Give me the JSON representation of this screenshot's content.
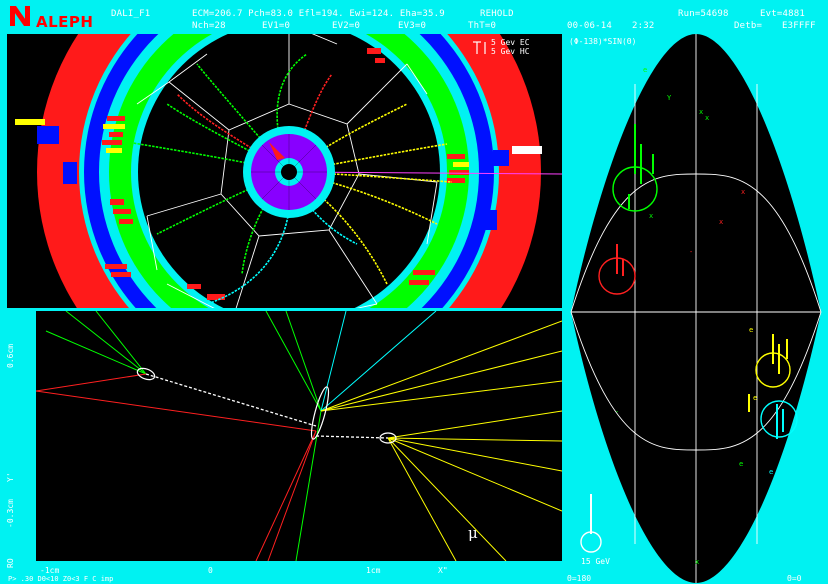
{
  "header": {
    "logo_text": "ALEPH",
    "program": "DALI_F1",
    "ecm_line": "ECM=206.7 Pch=83.0 Efl=194. Ewi=124. Eha=35.9",
    "rehold": "REHOLD",
    "run": "Run=54698",
    "evt": "Evt=4881",
    "nch_line": "Nch=28",
    "ev1": "EV1=0",
    "ev2": "EV2=0",
    "ev3": "EV3=0",
    "tht": "ThT=0",
    "date": "00-06-14",
    "time": "2:32",
    "detb": "Detb=",
    "detb_val": "E3FFFF"
  },
  "top_view": {
    "scale_ec": "5 Gev EC",
    "scale_hc": "5 Gev HC"
  },
  "zoom_view": {
    "y_top": "0.6cm",
    "y_bottom": "-0.3cm",
    "y_symbol": "Y'",
    "rho_label": "RO",
    "x_left": "-1cm",
    "x_mid": "0",
    "x_right": "1cm",
    "x_symbol": "X\"",
    "footer": "P> .30 D0<10 Z0<3 F C imp",
    "mu_label": "μ"
  },
  "right_view": {
    "title": "(Φ-138)*SIN(Θ)",
    "scale_label": "15 GeV",
    "bottom_left": "Θ=180",
    "bottom_right": "Θ=0"
  },
  "colors": {
    "background": "#00f2f2",
    "panel": "#000000",
    "track_green": "#00ff00",
    "track_yellow": "#ffff00",
    "track_red": "#ff0000",
    "track_cyan": "#00ffff",
    "calorimeter_red": "#ff1a1a",
    "coil_blue": "#0010ff"
  }
}
